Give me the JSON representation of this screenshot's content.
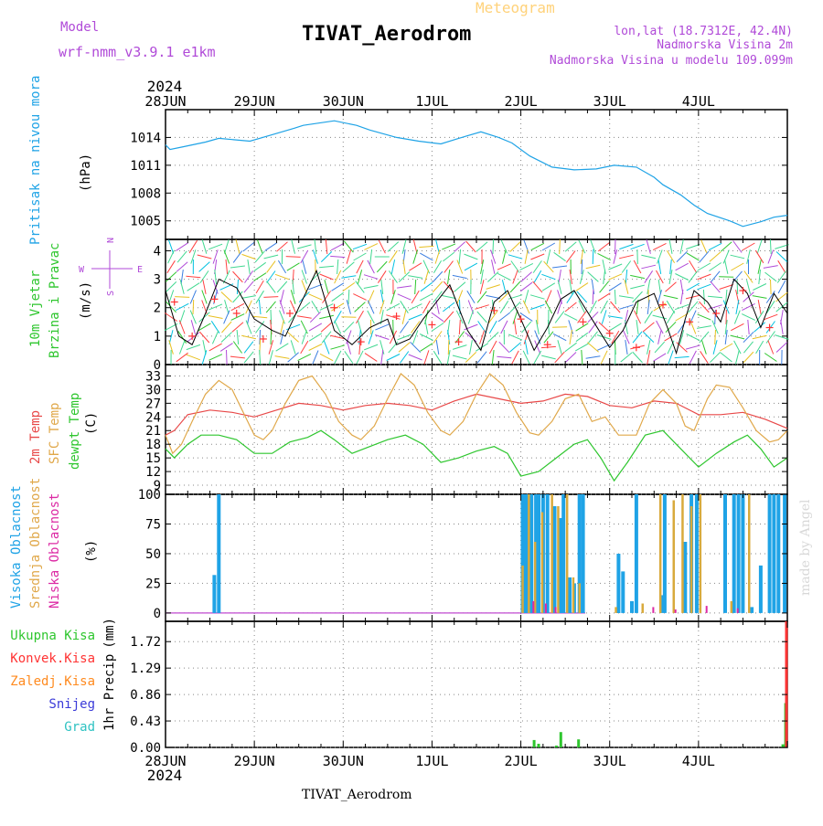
{
  "header": {
    "model_label": "Model",
    "model_name": "wrf-nmm_v3.9.1  e1km",
    "meteogram": "Meteogram",
    "station": "TIVAT_Aerodrom",
    "lonlat": "lon,lat (18.7312E, 42.4N)",
    "altitude": "Nadmorska Visina 2m",
    "model_altitude": "Nadmorska Visina u modelu 109.099m",
    "year": "2024",
    "footer_station": "TIVAT_Aerodrom",
    "credit": "made by Angel"
  },
  "colors": {
    "pressure": "#1fa3e6",
    "wind_speed": "#000000",
    "wind_gust": "#ff3333",
    "temp2m": "#e84848",
    "sfc_temp": "#e0a84a",
    "dewpt": "#2ec62e",
    "cloud_high": "#1fa3e6",
    "cloud_mid": "#d8aa3c",
    "cloud_low": "#dc2aa4",
    "precip_total": "#2ec62e",
    "precip_conv": "#ff3333",
    "precip_frozen": "#ff8a1e",
    "snow": "#3a3ad8",
    "hail": "#2ec2c2",
    "purple": "#b04ad8"
  },
  "chart_data": [
    {
      "type": "line",
      "panel": "pressure",
      "ylabel_main": "Pritisak na nivou mora",
      "ylabel_unit": "(hPa)",
      "yticks": [
        1005,
        1008,
        1011,
        1014
      ],
      "ylim": [
        1003,
        1017
      ],
      "series": [
        {
          "x": [
            0,
            0.05,
            0.2,
            0.45,
            0.6,
            0.95,
            1.2,
            1.45,
            1.55,
            1.9,
            2.15,
            2.3,
            2.6,
            2.85,
            3.1,
            3.3,
            3.55,
            3.75,
            3.9,
            4.1,
            4.35,
            4.6,
            4.85,
            5.05,
            5.3,
            5.5,
            5.6,
            5.8,
            5.95,
            6.1,
            6.35,
            6.5,
            6.7,
            6.85,
            7.0
          ],
          "values": [
            1013.2,
            1012.7,
            1013.0,
            1013.5,
            1013.9,
            1013.6,
            1014.3,
            1015.0,
            1015.3,
            1015.8,
            1015.3,
            1014.8,
            1014.0,
            1013.6,
            1013.3,
            1013.9,
            1014.6,
            1014.0,
            1013.4,
            1012.0,
            1010.8,
            1010.5,
            1010.6,
            1011.0,
            1010.8,
            1009.7,
            1008.9,
            1007.8,
            1006.7,
            1005.8,
            1005.0,
            1004.4,
            1004.9,
            1005.4,
            1005.6
          ]
        }
      ]
    },
    {
      "type": "line",
      "panel": "wind",
      "ylabel_main": "10m Vjetar",
      "ylabel_sub": "Brzina i Pravac",
      "ylabel_unit": "(m/s)",
      "compass": {
        "n": "N",
        "s": "S",
        "e": "E",
        "w": "W"
      },
      "yticks": [
        0,
        1,
        2,
        3,
        4
      ],
      "ylim": [
        0,
        4.4
      ],
      "series": [
        {
          "name": "speed",
          "x": [
            0,
            0.15,
            0.3,
            0.45,
            0.6,
            0.8,
            1.0,
            1.2,
            1.35,
            1.5,
            1.7,
            1.9,
            2.1,
            2.3,
            2.5,
            2.6,
            2.75,
            2.9,
            3.05,
            3.2,
            3.4,
            3.55,
            3.7,
            3.85,
            4.0,
            4.15,
            4.3,
            4.45,
            4.6,
            4.8,
            5.0,
            5.15,
            5.3,
            5.5,
            5.65,
            5.75,
            5.85,
            5.95,
            6.1,
            6.25,
            6.4,
            6.55,
            6.7,
            6.85,
            7.0
          ],
          "values": [
            2.6,
            1.0,
            0.7,
            1.8,
            3.0,
            2.7,
            1.6,
            1.2,
            1.0,
            2.0,
            3.3,
            1.2,
            0.7,
            1.3,
            1.6,
            0.7,
            0.9,
            1.6,
            2.2,
            2.8,
            1.2,
            0.5,
            2.2,
            2.6,
            1.6,
            0.5,
            1.3,
            2.3,
            2.6,
            1.6,
            0.6,
            1.2,
            2.2,
            2.5,
            1.3,
            0.4,
            1.6,
            2.6,
            2.2,
            1.5,
            3.0,
            2.5,
            1.3,
            2.5,
            1.8
          ]
        },
        {
          "name": "gust",
          "x": [
            0.1,
            0.3,
            0.55,
            0.8,
            1.1,
            1.4,
            1.9,
            2.2,
            2.6,
            3.0,
            3.3,
            3.7,
            4.0,
            4.3,
            4.7,
            5.0,
            5.3,
            5.6,
            5.9,
            6.2,
            6.5,
            6.8
          ],
          "values": [
            2.2,
            1.0,
            2.3,
            1.8,
            0.9,
            1.8,
            2.0,
            0.8,
            1.7,
            1.4,
            0.8,
            1.9,
            1.6,
            0.7,
            1.5,
            1.1,
            0.6,
            2.1,
            1.5,
            1.8,
            2.6,
            1.3
          ]
        }
      ]
    },
    {
      "type": "line",
      "panel": "temperature",
      "ylabels": [
        "2m Temp",
        "SFC Temp",
        "dewpt Temp"
      ],
      "ylabel_unit": "(C)",
      "yticks": [
        9,
        12,
        15,
        18,
        21,
        24,
        27,
        30,
        33
      ],
      "ylim": [
        7,
        35.5
      ],
      "series": [
        {
          "name": "2m Temp",
          "x": [
            0,
            0.1,
            0.25,
            0.5,
            0.75,
            1.0,
            1.25,
            1.5,
            1.75,
            2.0,
            2.25,
            2.5,
            2.75,
            3.0,
            3.25,
            3.5,
            3.75,
            4.0,
            4.25,
            4.5,
            4.75,
            5.0,
            5.25,
            5.5,
            5.75,
            6.0,
            6.25,
            6.5,
            6.75,
            7.0
          ],
          "values": [
            20,
            21,
            24.5,
            25.5,
            25,
            24,
            25.5,
            27,
            26.5,
            25.5,
            26.5,
            27,
            26.5,
            25.5,
            27.5,
            29,
            28,
            27,
            27.5,
            29,
            28.5,
            26.5,
            26,
            27.5,
            27,
            24.5,
            24.5,
            25,
            23.5,
            21.5
          ]
        },
        {
          "name": "SFC Temp",
          "x": [
            0,
            0.08,
            0.18,
            0.3,
            0.45,
            0.6,
            0.75,
            0.9,
            1.0,
            1.1,
            1.2,
            1.35,
            1.5,
            1.65,
            1.8,
            1.95,
            2.1,
            2.2,
            2.35,
            2.5,
            2.65,
            2.8,
            2.95,
            3.1,
            3.2,
            3.35,
            3.5,
            3.65,
            3.8,
            3.95,
            4.1,
            4.2,
            4.35,
            4.5,
            4.65,
            4.8,
            4.95,
            5.1,
            5.2,
            5.3,
            5.45,
            5.6,
            5.75,
            5.85,
            5.95,
            6.1,
            6.2,
            6.35,
            6.5,
            6.65,
            6.8,
            6.9,
            7.0
          ],
          "values": [
            20,
            16,
            18,
            23,
            29,
            32,
            30,
            24,
            20,
            19,
            21,
            27,
            32,
            33,
            29,
            23,
            20,
            19,
            22,
            28,
            33.5,
            31,
            25,
            21,
            20,
            23,
            29,
            33.5,
            31,
            25,
            20.5,
            20,
            23,
            28,
            29,
            23,
            24,
            20,
            20,
            20,
            27,
            30,
            27,
            22,
            21,
            28,
            31,
            30.5,
            26,
            21,
            18.5,
            19,
            21
          ]
        },
        {
          "name": "dewpt Temp",
          "x": [
            0,
            0.1,
            0.25,
            0.4,
            0.6,
            0.8,
            1.0,
            1.2,
            1.4,
            1.6,
            1.75,
            1.9,
            2.1,
            2.3,
            2.5,
            2.7,
            2.9,
            3.1,
            3.3,
            3.5,
            3.7,
            3.85,
            4.0,
            4.2,
            4.4,
            4.6,
            4.75,
            4.9,
            5.05,
            5.2,
            5.4,
            5.6,
            5.8,
            6.0,
            6.2,
            6.4,
            6.55,
            6.7,
            6.85,
            7.0
          ],
          "values": [
            17,
            15,
            18,
            20,
            20,
            19,
            16,
            16,
            18.5,
            19.5,
            21,
            19,
            16,
            17.5,
            19,
            20,
            18,
            14,
            15,
            16.5,
            17.5,
            16,
            11,
            12,
            15,
            18,
            19,
            15,
            10,
            14,
            20,
            21,
            17,
            13,
            16,
            18.5,
            20,
            17,
            13,
            15
          ]
        }
      ]
    },
    {
      "type": "bar",
      "panel": "cloud",
      "ylabels": [
        "Visoka Oblacnost",
        "Srednja Oblacnost",
        "Niska Oblacnost"
      ],
      "ylabel_unit": "(%)",
      "yticks": [
        0,
        25,
        50,
        75,
        100
      ],
      "ylim": [
        -7,
        100
      ],
      "series": [
        {
          "name": "Visoka Oblacnost",
          "x": [
            0.55,
            0.6,
            4.02,
            4.05,
            4.08,
            4.12,
            4.17,
            4.2,
            4.25,
            4.3,
            4.38,
            4.45,
            4.48,
            4.55,
            4.6,
            4.66,
            4.7,
            5.1,
            5.15,
            5.25,
            5.3,
            5.58,
            5.62,
            5.85,
            5.92,
            5.98,
            6.3,
            6.4,
            6.45,
            6.5,
            6.6,
            6.7,
            6.8,
            6.85,
            6.9,
            6.97
          ],
          "values": [
            32,
            100,
            100,
            100,
            100,
            100,
            100,
            100,
            100,
            100,
            90,
            80,
            100,
            30,
            25,
            100,
            100,
            50,
            35,
            10,
            100,
            15,
            100,
            60,
            100,
            100,
            100,
            100,
            100,
            100,
            5,
            40,
            100,
            100,
            100,
            100
          ]
        },
        {
          "name": "Srednja Oblacnost",
          "x": [
            4.0,
            4.07,
            4.14,
            4.22,
            4.33,
            4.4,
            4.5,
            4.57,
            4.64,
            5.05,
            5.35,
            5.55,
            5.7,
            5.8,
            5.9,
            6.0,
            6.35,
            6.55
          ],
          "values": [
            40,
            100,
            60,
            85,
            100,
            90,
            100,
            30,
            25,
            5,
            8,
            100,
            95,
            100,
            90,
            100,
            10,
            100
          ]
        },
        {
          "name": "Niska Oblacnost",
          "x": [
            4.1,
            4.24,
            4.35,
            5.45,
            5.7,
            6.05,
            6.4
          ],
          "values": [
            10,
            8,
            5,
            5,
            3,
            6,
            4
          ]
        }
      ]
    },
    {
      "type": "bar",
      "panel": "precip",
      "ylabel_main": "1hr Precip",
      "ylabel_unit": "(mm)",
      "legend": [
        "Ukupna Kisa",
        "Konvek.Kisa",
        "Zaledj.Kisa",
        "Snijeg",
        "Grad"
      ],
      "yticks": [
        0,
        0.43,
        0.86,
        1.29,
        1.72
      ],
      "ylim": [
        0,
        2.05
      ],
      "series": [
        {
          "name": "Ukupna Kisa",
          "x": [
            4.15,
            4.2,
            4.4,
            4.45,
            4.65,
            6.95,
            6.98
          ],
          "values": [
            0.12,
            0.06,
            0.03,
            0.25,
            0.13,
            0.05,
            0.72
          ]
        },
        {
          "name": "Konvek.Kisa",
          "x": [
            6.99
          ],
          "values": [
            2.05
          ]
        }
      ]
    }
  ],
  "time_axis": {
    "labels": [
      "28JUN",
      "29JUN",
      "30JUN",
      "1JUL",
      "2JUL",
      "3JUL",
      "4JUL"
    ],
    "year": "2024"
  }
}
